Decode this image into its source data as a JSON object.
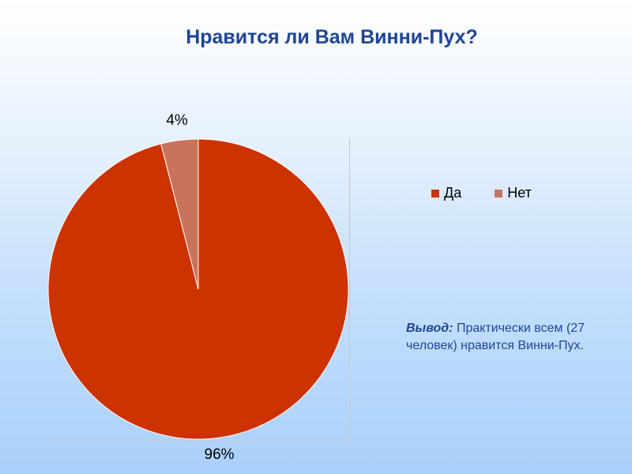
{
  "title": "Нравится ли Вам Винни-Пух?",
  "conclusion": {
    "label": "Вывод:",
    "text": "Практически всем (27 человек) нравится Винни-Пух."
  },
  "colors": {
    "title": "#1f4596",
    "yes": "#cc3300",
    "no": "#c8735c"
  },
  "chart_data": {
    "type": "pie",
    "title": "Нравится ли Вам Винни-Пух?",
    "categories": [
      "Да",
      "Нет"
    ],
    "values": [
      96,
      4
    ],
    "data_labels": [
      "96%",
      "4%"
    ],
    "colors": [
      "#cc3300",
      "#c8735c"
    ],
    "legend": "right"
  }
}
